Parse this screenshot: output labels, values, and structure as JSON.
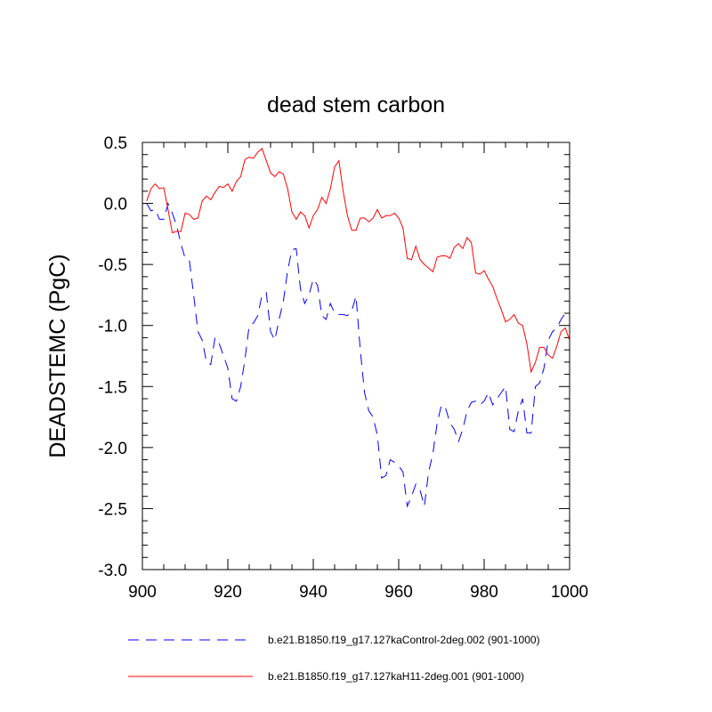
{
  "chart_data": {
    "type": "line",
    "title": "dead stem carbon",
    "xlabel": "",
    "ylabel": "DEADSTEMC  (PgC)",
    "xlim": [
      900,
      1000
    ],
    "ylim": [
      -3.0,
      0.5
    ],
    "xticks": [
      900,
      920,
      940,
      960,
      980,
      1000
    ],
    "xtick_labels": [
      "900",
      "920",
      "940",
      "960",
      "980",
      "1000"
    ],
    "yticks": [
      0.5,
      0.0,
      -0.5,
      -1.0,
      -1.5,
      -2.0,
      -2.5,
      -3.0
    ],
    "ytick_labels": [
      "0.5",
      "0.0",
      "-0.5",
      "-1.0",
      "-1.5",
      "-2.0",
      "-2.5",
      "-3.0"
    ],
    "grid": false,
    "legend_position": "bottom",
    "series": [
      {
        "name": "b.e21.B1850.f19_g17.127kaControl-2deg.002 (901-1000)",
        "color": "#0000ff",
        "style": "dashed",
        "x": [
          901,
          902,
          903,
          904,
          905,
          906,
          907,
          908,
          909,
          910,
          911,
          912,
          913,
          914,
          915,
          916,
          917,
          918,
          919,
          920,
          921,
          922,
          923,
          924,
          925,
          926,
          927,
          928,
          929,
          930,
          931,
          932,
          933,
          934,
          935,
          936,
          937,
          938,
          939,
          940,
          941,
          942,
          943,
          944,
          945,
          946,
          947,
          948,
          949,
          950,
          951,
          952,
          953,
          954,
          955,
          956,
          957,
          958,
          959,
          960,
          961,
          962,
          963,
          964,
          965,
          966,
          967,
          968,
          969,
          970,
          971,
          972,
          973,
          974,
          975,
          976,
          977,
          978,
          979,
          980,
          981,
          982,
          983,
          984,
          985,
          986,
          987,
          988,
          989,
          990,
          991,
          992,
          993,
          994,
          995,
          996,
          997,
          998,
          999,
          1000
        ],
        "y": [
          0.0,
          -0.06,
          -0.05,
          -0.13,
          -0.13,
          0.0,
          -0.08,
          -0.18,
          -0.33,
          -0.45,
          -0.47,
          -0.75,
          -1.05,
          -1.12,
          -1.3,
          -1.32,
          -1.1,
          -1.15,
          -1.25,
          -1.35,
          -1.6,
          -1.62,
          -1.5,
          -1.28,
          -1.0,
          -0.98,
          -0.92,
          -0.75,
          -0.73,
          -1.05,
          -1.12,
          -0.95,
          -0.8,
          -0.55,
          -0.38,
          -0.37,
          -0.7,
          -0.82,
          -0.75,
          -0.62,
          -0.67,
          -0.92,
          -0.95,
          -0.82,
          -0.9,
          -0.91,
          -0.91,
          -0.92,
          -0.88,
          -0.76,
          -1.2,
          -1.55,
          -1.7,
          -1.75,
          -1.9,
          -2.25,
          -2.23,
          -2.1,
          -2.12,
          -2.15,
          -2.2,
          -2.48,
          -2.4,
          -2.3,
          -2.35,
          -2.48,
          -2.2,
          -2.05,
          -1.8,
          -1.65,
          -1.68,
          -1.8,
          -1.85,
          -1.95,
          -1.85,
          -1.7,
          -1.63,
          -1.62,
          -1.65,
          -1.62,
          -1.55,
          -1.65,
          -1.6,
          -1.55,
          -1.5,
          -1.85,
          -1.87,
          -1.7,
          -1.6,
          -1.88,
          -1.88,
          -1.5,
          -1.47,
          -1.35,
          -1.12,
          -1.05,
          -1.02,
          -0.95,
          -0.9,
          -0.9
        ]
      },
      {
        "name": "b.e21.B1850.f19_g17.127kaH11-2deg.001 (901-1000)",
        "color": "#ff0000",
        "style": "solid",
        "x": [
          901,
          902,
          903,
          904,
          905,
          906,
          907,
          908,
          909,
          910,
          911,
          912,
          913,
          914,
          915,
          916,
          917,
          918,
          919,
          920,
          921,
          922,
          923,
          924,
          925,
          926,
          927,
          928,
          929,
          930,
          931,
          932,
          933,
          934,
          935,
          936,
          937,
          938,
          939,
          940,
          941,
          942,
          943,
          944,
          945,
          946,
          947,
          948,
          949,
          950,
          951,
          952,
          953,
          954,
          955,
          956,
          957,
          958,
          959,
          960,
          961,
          962,
          963,
          964,
          965,
          966,
          967,
          968,
          969,
          970,
          971,
          972,
          973,
          974,
          975,
          976,
          977,
          978,
          979,
          980,
          981,
          982,
          983,
          984,
          985,
          986,
          987,
          988,
          989,
          990,
          991,
          992,
          993,
          994,
          995,
          996,
          997,
          998,
          999,
          1000
        ],
        "y": [
          0.02,
          0.12,
          0.16,
          0.12,
          0.13,
          -0.05,
          -0.24,
          -0.23,
          -0.23,
          -0.08,
          -0.09,
          -0.13,
          -0.12,
          0.02,
          0.06,
          0.03,
          0.09,
          0.14,
          0.13,
          0.16,
          0.1,
          0.18,
          0.22,
          0.36,
          0.38,
          0.37,
          0.42,
          0.45,
          0.35,
          0.25,
          0.22,
          0.26,
          0.24,
          0.12,
          -0.07,
          -0.13,
          -0.07,
          -0.1,
          -0.2,
          -0.1,
          -0.05,
          0.05,
          0.0,
          0.12,
          0.3,
          0.35,
          0.1,
          -0.1,
          -0.22,
          -0.22,
          -0.12,
          -0.12,
          -0.15,
          -0.12,
          -0.05,
          -0.12,
          -0.1,
          -0.1,
          -0.08,
          -0.12,
          -0.2,
          -0.45,
          -0.46,
          -0.35,
          -0.46,
          -0.5,
          -0.53,
          -0.56,
          -0.44,
          -0.43,
          -0.43,
          -0.45,
          -0.36,
          -0.33,
          -0.37,
          -0.28,
          -0.32,
          -0.57,
          -0.58,
          -0.55,
          -0.62,
          -0.68,
          -0.78,
          -0.87,
          -0.97,
          -0.95,
          -0.91,
          -0.98,
          -1.0,
          -1.15,
          -1.38,
          -1.3,
          -1.18,
          -1.18,
          -1.24,
          -1.27,
          -1.17,
          -1.05,
          -1.02,
          -1.12
        ]
      }
    ]
  }
}
